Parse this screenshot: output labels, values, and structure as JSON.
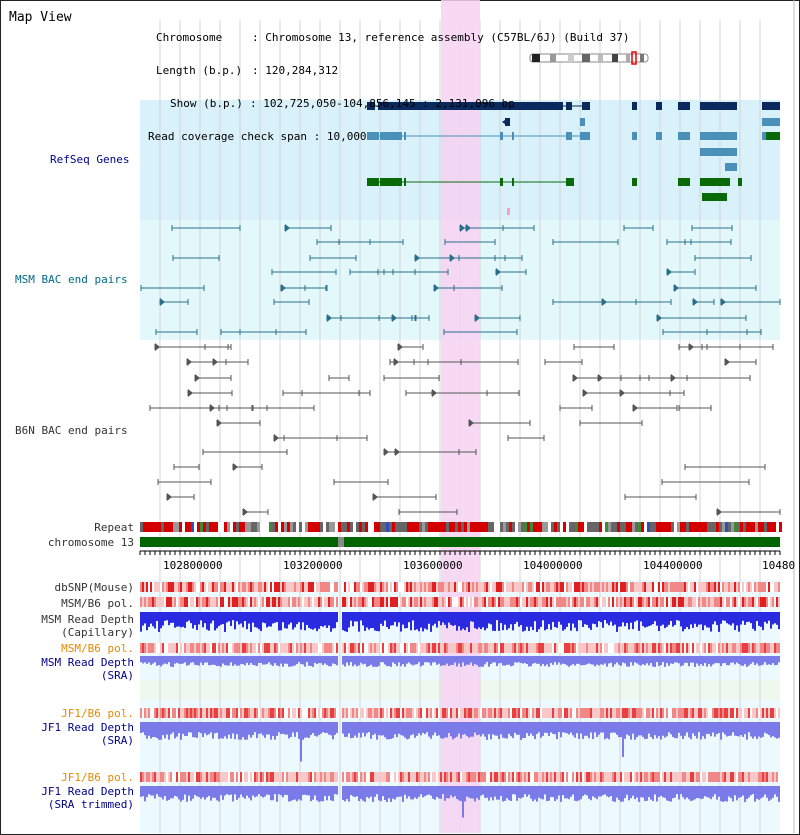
{
  "app": {
    "title": "Map View"
  },
  "header": {
    "chromosome_label": "Chromosome",
    "chromosome_value": ": Chromosome 13, reference assembly (C57BL/6J) (Build 37)",
    "length_label": "Length (b.p.)",
    "length_value": ": 120,284,312",
    "show_label": "Show (b.p.)",
    "show_value": ": 102,725,050-104,856,145 : 2,131,096 bp",
    "coverage_label": "Read coverage check span",
    "coverage_value": ": 10,000"
  },
  "tracks": {
    "refseq": "RefSeq Genes",
    "msm_bac": "MSM BAC end pairs",
    "b6n_bac": "B6N BAC end pairs",
    "repeat": "Repeat",
    "chromosome": "chromosome 13",
    "dbsnp": "dbSNP(Mouse)",
    "msm_b6_pol_1": "MSM/B6 pol.",
    "msm_depth_cap_1": "MSM Read Depth",
    "msm_depth_cap_2": "(Capillary)",
    "msm_b6_pol_2": "MSM/B6 pol.",
    "msm_depth_sra_1": "MSM Read Depth",
    "msm_depth_sra_2": "(SRA)",
    "jf1_b6_pol_1": "JF1/B6 pol.",
    "jf1_depth_sra_1": "JF1 Read Depth",
    "jf1_depth_sra_2": "(SRA)",
    "jf1_b6_pol_2": "JF1/B6 pol.",
    "jf1_depth_trim_1": "JF1 Read Depth",
    "jf1_depth_trim_2": "(SRA trimmed)"
  },
  "axis": {
    "ticks": [
      "102800000",
      "103200000",
      "103600000",
      "104000000",
      "104400000",
      "10480"
    ]
  },
  "colors": {
    "refseq_bg": "#d8f1fb",
    "msm_bg": "#e3f8fb",
    "highlight": "#f7d2f2",
    "gene_navy": "#0a2a5e",
    "gene_teal": "#4a90b8",
    "gene_green": "#0a6a0a",
    "bac_teal": "#2a6f8a",
    "bac_gray": "#555555",
    "chromosome_green": "#006400",
    "snp_red": "#e84545",
    "depth_blue": "#2a2ae0",
    "depth_light": "#7a7ae8"
  }
}
